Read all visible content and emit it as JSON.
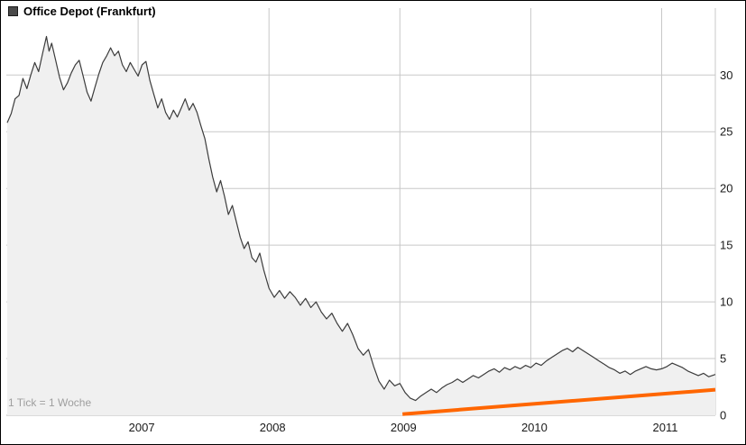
{
  "legend": {
    "label": "Office Depot (Frankfurt)",
    "swatch_color": "#4a4a4a"
  },
  "footer": {
    "tick_note": "1 Tick = 1 Woche"
  },
  "colors": {
    "grid": "#c8c8c8",
    "axis_text": "#1a1a1a",
    "note_text": "#9e9e9e",
    "trend": "#ff6600"
  },
  "chart_data": {
    "type": "area",
    "title": "Office Depot (Frankfurt)",
    "x_unit": "year (weekly ticks, 1 Tick = 1 Woche)",
    "xlim": [
      2006.0,
      2011.41
    ],
    "ylim": [
      0,
      35.9
    ],
    "yticks": [
      0,
      5,
      10,
      15,
      20,
      25,
      30
    ],
    "xticks": [
      2007,
      2008,
      2009,
      2010,
      2011
    ],
    "grid": true,
    "legend_position": "top-left",
    "series": [
      {
        "name": "Office Depot (Frankfurt)",
        "color": "#3c3c3c",
        "fill": "#f0f0f0",
        "points": [
          [
            2006.0,
            25.8
          ],
          [
            2006.03,
            26.6
          ],
          [
            2006.06,
            27.9
          ],
          [
            2006.09,
            28.2
          ],
          [
            2006.12,
            29.7
          ],
          [
            2006.15,
            28.8
          ],
          [
            2006.18,
            30.0
          ],
          [
            2006.21,
            31.1
          ],
          [
            2006.24,
            30.3
          ],
          [
            2006.27,
            31.9
          ],
          [
            2006.3,
            33.4
          ],
          [
            2006.32,
            32.1
          ],
          [
            2006.34,
            32.8
          ],
          [
            2006.37,
            31.3
          ],
          [
            2006.4,
            29.8
          ],
          [
            2006.43,
            28.7
          ],
          [
            2006.46,
            29.3
          ],
          [
            2006.49,
            30.2
          ],
          [
            2006.52,
            30.9
          ],
          [
            2006.55,
            31.3
          ],
          [
            2006.58,
            29.9
          ],
          [
            2006.61,
            28.5
          ],
          [
            2006.64,
            27.7
          ],
          [
            2006.67,
            28.9
          ],
          [
            2006.7,
            30.1
          ],
          [
            2006.73,
            31.1
          ],
          [
            2006.76,
            31.7
          ],
          [
            2006.79,
            32.4
          ],
          [
            2006.82,
            31.7
          ],
          [
            2006.85,
            32.1
          ],
          [
            2006.88,
            30.9
          ],
          [
            2006.91,
            30.3
          ],
          [
            2006.94,
            31.1
          ],
          [
            2006.97,
            30.5
          ],
          [
            2007.0,
            29.9
          ],
          [
            2007.03,
            30.9
          ],
          [
            2007.06,
            31.2
          ],
          [
            2007.09,
            29.5
          ],
          [
            2007.12,
            28.3
          ],
          [
            2007.15,
            27.1
          ],
          [
            2007.18,
            27.9
          ],
          [
            2007.21,
            26.7
          ],
          [
            2007.24,
            26.1
          ],
          [
            2007.27,
            26.9
          ],
          [
            2007.3,
            26.3
          ],
          [
            2007.33,
            27.1
          ],
          [
            2007.36,
            27.9
          ],
          [
            2007.39,
            26.9
          ],
          [
            2007.42,
            27.5
          ],
          [
            2007.45,
            26.7
          ],
          [
            2007.48,
            25.5
          ],
          [
            2007.51,
            24.4
          ],
          [
            2007.54,
            22.6
          ],
          [
            2007.57,
            21.0
          ],
          [
            2007.6,
            19.7
          ],
          [
            2007.63,
            20.7
          ],
          [
            2007.66,
            19.3
          ],
          [
            2007.69,
            17.7
          ],
          [
            2007.72,
            18.5
          ],
          [
            2007.75,
            17.1
          ],
          [
            2007.78,
            15.7
          ],
          [
            2007.81,
            14.7
          ],
          [
            2007.84,
            15.3
          ],
          [
            2007.87,
            13.9
          ],
          [
            2007.9,
            13.5
          ],
          [
            2007.93,
            14.3
          ],
          [
            2007.96,
            12.8
          ],
          [
            2008.0,
            11.2
          ],
          [
            2008.04,
            10.4
          ],
          [
            2008.08,
            11.0
          ],
          [
            2008.12,
            10.3
          ],
          [
            2008.16,
            10.9
          ],
          [
            2008.2,
            10.4
          ],
          [
            2008.24,
            9.7
          ],
          [
            2008.28,
            10.3
          ],
          [
            2008.32,
            9.5
          ],
          [
            2008.36,
            10.0
          ],
          [
            2008.4,
            9.1
          ],
          [
            2008.44,
            8.5
          ],
          [
            2008.48,
            9.0
          ],
          [
            2008.52,
            8.1
          ],
          [
            2008.56,
            7.4
          ],
          [
            2008.6,
            8.1
          ],
          [
            2008.64,
            7.1
          ],
          [
            2008.68,
            5.9
          ],
          [
            2008.72,
            5.3
          ],
          [
            2008.76,
            5.8
          ],
          [
            2008.8,
            4.3
          ],
          [
            2008.84,
            3.0
          ],
          [
            2008.88,
            2.3
          ],
          [
            2008.92,
            3.1
          ],
          [
            2008.96,
            2.6
          ],
          [
            2009.0,
            2.8
          ],
          [
            2009.04,
            2.0
          ],
          [
            2009.08,
            1.5
          ],
          [
            2009.12,
            1.3
          ],
          [
            2009.16,
            1.7
          ],
          [
            2009.2,
            2.0
          ],
          [
            2009.24,
            2.3
          ],
          [
            2009.28,
            2.0
          ],
          [
            2009.32,
            2.4
          ],
          [
            2009.36,
            2.7
          ],
          [
            2009.4,
            2.9
          ],
          [
            2009.44,
            3.2
          ],
          [
            2009.48,
            2.9
          ],
          [
            2009.52,
            3.2
          ],
          [
            2009.56,
            3.5
          ],
          [
            2009.6,
            3.3
          ],
          [
            2009.64,
            3.6
          ],
          [
            2009.68,
            3.9
          ],
          [
            2009.72,
            4.1
          ],
          [
            2009.76,
            3.8
          ],
          [
            2009.8,
            4.2
          ],
          [
            2009.84,
            4.0
          ],
          [
            2009.88,
            4.3
          ],
          [
            2009.92,
            4.1
          ],
          [
            2009.96,
            4.4
          ],
          [
            2010.0,
            4.2
          ],
          [
            2010.04,
            4.6
          ],
          [
            2010.08,
            4.4
          ],
          [
            2010.12,
            4.8
          ],
          [
            2010.16,
            5.1
          ],
          [
            2010.2,
            5.4
          ],
          [
            2010.24,
            5.7
          ],
          [
            2010.28,
            5.9
          ],
          [
            2010.32,
            5.6
          ],
          [
            2010.36,
            6.0
          ],
          [
            2010.4,
            5.7
          ],
          [
            2010.44,
            5.4
          ],
          [
            2010.48,
            5.1
          ],
          [
            2010.52,
            4.8
          ],
          [
            2010.56,
            4.5
          ],
          [
            2010.6,
            4.2
          ],
          [
            2010.64,
            4.0
          ],
          [
            2010.68,
            3.7
          ],
          [
            2010.72,
            3.9
          ],
          [
            2010.76,
            3.6
          ],
          [
            2010.8,
            3.9
          ],
          [
            2010.84,
            4.1
          ],
          [
            2010.88,
            4.3
          ],
          [
            2010.92,
            4.1
          ],
          [
            2010.96,
            4.0
          ],
          [
            2011.0,
            4.1
          ],
          [
            2011.04,
            4.3
          ],
          [
            2011.08,
            4.6
          ],
          [
            2011.12,
            4.4
          ],
          [
            2011.16,
            4.2
          ],
          [
            2011.2,
            3.9
          ],
          [
            2011.24,
            3.7
          ],
          [
            2011.28,
            3.5
          ],
          [
            2011.32,
            3.7
          ],
          [
            2011.36,
            3.4
          ],
          [
            2011.41,
            3.6
          ]
        ]
      }
    ],
    "trend_line": {
      "x1": 2009.02,
      "y1": 0.1,
      "x2": 2011.41,
      "y2": 2.25,
      "color": "#ff6600",
      "width": 4
    }
  }
}
